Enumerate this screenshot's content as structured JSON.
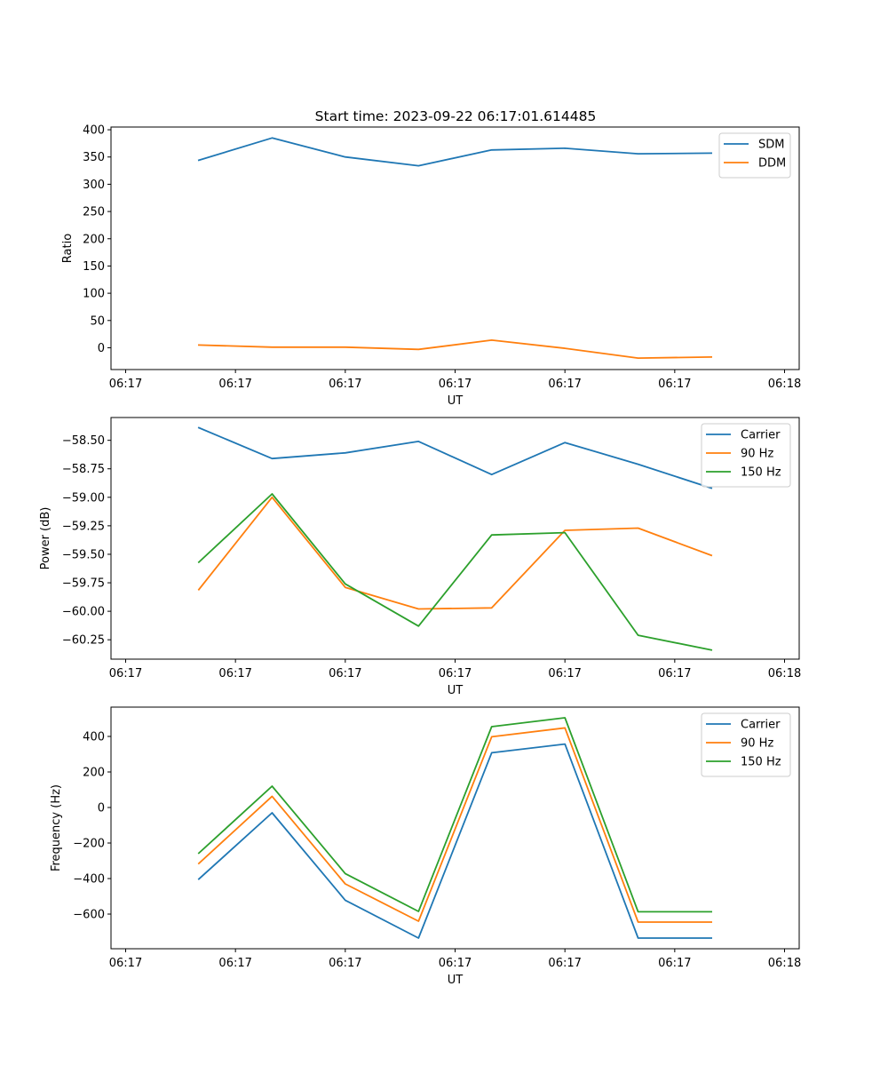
{
  "figure": {
    "title": "Start time: 2023-09-22 06:17:01.614485"
  },
  "colors": {
    "blue": "#1f77b4",
    "orange": "#ff7f0e",
    "green": "#2ca02c"
  },
  "chart_data": [
    {
      "type": "line",
      "title": "Start time: 2023-09-22 06:17:01.614485",
      "xlabel": "UT",
      "ylabel": "Ratio",
      "x": [
        1,
        2,
        3,
        4,
        5,
        6,
        7,
        8
      ],
      "xlim": [
        -0.2,
        9.2
      ],
      "x_ticks": [
        0,
        1.5,
        3,
        4.5,
        6,
        7.5,
        9
      ],
      "x_tick_labels": [
        "06:17",
        "06:17",
        "06:17",
        "06:17",
        "06:17",
        "06:17",
        "06:18"
      ],
      "ylim": [
        -40,
        405
      ],
      "y_ticks": [
        0,
        50,
        100,
        150,
        200,
        250,
        300,
        350,
        400
      ],
      "y_tick_labels": [
        "0",
        "50",
        "100",
        "150",
        "200",
        "250",
        "300",
        "350",
        "400"
      ],
      "legend_position": "upper-right",
      "series": [
        {
          "name": "SDM",
          "color": "#1f77b4",
          "values": [
            344,
            385,
            350,
            334,
            363,
            366,
            356,
            357
          ]
        },
        {
          "name": "DDM",
          "color": "#ff7f0e",
          "values": [
            5,
            1,
            1,
            -3,
            14,
            -1,
            -19,
            -17
          ]
        }
      ]
    },
    {
      "type": "line",
      "xlabel": "UT",
      "ylabel": "Power (dB)",
      "x": [
        1,
        2,
        3,
        4,
        5,
        6,
        7,
        8
      ],
      "xlim": [
        -0.2,
        9.2
      ],
      "x_ticks": [
        0,
        1.5,
        3,
        4.5,
        6,
        7.5,
        9
      ],
      "x_tick_labels": [
        "06:17",
        "06:17",
        "06:17",
        "06:17",
        "06:17",
        "06:17",
        "06:18"
      ],
      "ylim": [
        -60.42,
        -58.3
      ],
      "y_ticks": [
        -60.25,
        -60.0,
        -59.75,
        -59.5,
        -59.25,
        -59.0,
        -58.75,
        -58.5
      ],
      "y_tick_labels": [
        "−60.25",
        "−60.00",
        "−59.75",
        "−59.50",
        "−59.25",
        "−59.00",
        "−58.75",
        "−58.50"
      ],
      "legend_position": "upper-right",
      "series": [
        {
          "name": "Carrier",
          "color": "#1f77b4",
          "values": [
            -58.39,
            -58.66,
            -58.61,
            -58.51,
            -58.8,
            -58.52,
            -58.71,
            -58.92
          ]
        },
        {
          "name": "90 Hz",
          "color": "#ff7f0e",
          "values": [
            -59.81,
            -59.0,
            -59.79,
            -59.98,
            -59.97,
            -59.29,
            -59.27,
            -59.51
          ]
        },
        {
          "name": "150 Hz",
          "color": "#2ca02c",
          "values": [
            -59.57,
            -58.97,
            -59.76,
            -60.13,
            -59.33,
            -59.31,
            -60.21,
            -60.34
          ]
        }
      ]
    },
    {
      "type": "line",
      "xlabel": "UT",
      "ylabel": "Frequency (Hz)",
      "x": [
        1,
        2,
        3,
        4,
        5,
        6,
        7,
        8
      ],
      "xlim": [
        -0.2,
        9.2
      ],
      "x_ticks": [
        0,
        1.5,
        3,
        4.5,
        6,
        7.5,
        9
      ],
      "x_tick_labels": [
        "06:17",
        "06:17",
        "06:17",
        "06:17",
        "06:17",
        "06:17",
        "06:18"
      ],
      "ylim": [
        -795,
        565
      ],
      "y_ticks": [
        -600,
        -400,
        -200,
        0,
        200,
        400
      ],
      "y_tick_labels": [
        "−600",
        "−400",
        "−200",
        "0",
        "200",
        "400"
      ],
      "legend_position": "upper-right",
      "series": [
        {
          "name": "Carrier",
          "color": "#1f77b4",
          "values": [
            -403,
            -30,
            -522,
            -735,
            308,
            357,
            -735,
            -735
          ]
        },
        {
          "name": "90 Hz",
          "color": "#ff7f0e",
          "values": [
            -315,
            63,
            -430,
            -640,
            398,
            448,
            -645,
            -645
          ]
        },
        {
          "name": "150 Hz",
          "color": "#2ca02c",
          "values": [
            -257,
            120,
            -372,
            -585,
            455,
            505,
            -587,
            -587
          ]
        }
      ]
    }
  ]
}
